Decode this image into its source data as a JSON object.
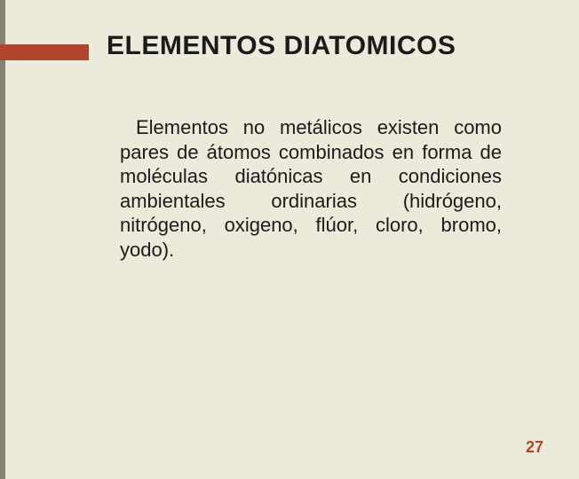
{
  "slide": {
    "title": "ELEMENTOS DIATOMICOS",
    "body": "Elementos no metálicos existen como pares de átomos combinados en forma de moléculas diatónicas en condiciones ambientales ordinarias (hidrógeno, nitrógeno, oxigeno, flúor, cloro, bromo, yodo).",
    "page_number": "27"
  },
  "style": {
    "background_color": "#eceadb",
    "accent_bar_color": "#b0452d",
    "accent_line_color": "#828471",
    "title_fontsize": 30,
    "body_fontsize": 22,
    "page_num_fontsize": 18,
    "page_num_color": "#b0452d",
    "text_color": "#1b1b1b",
    "font_family": "Arial"
  }
}
